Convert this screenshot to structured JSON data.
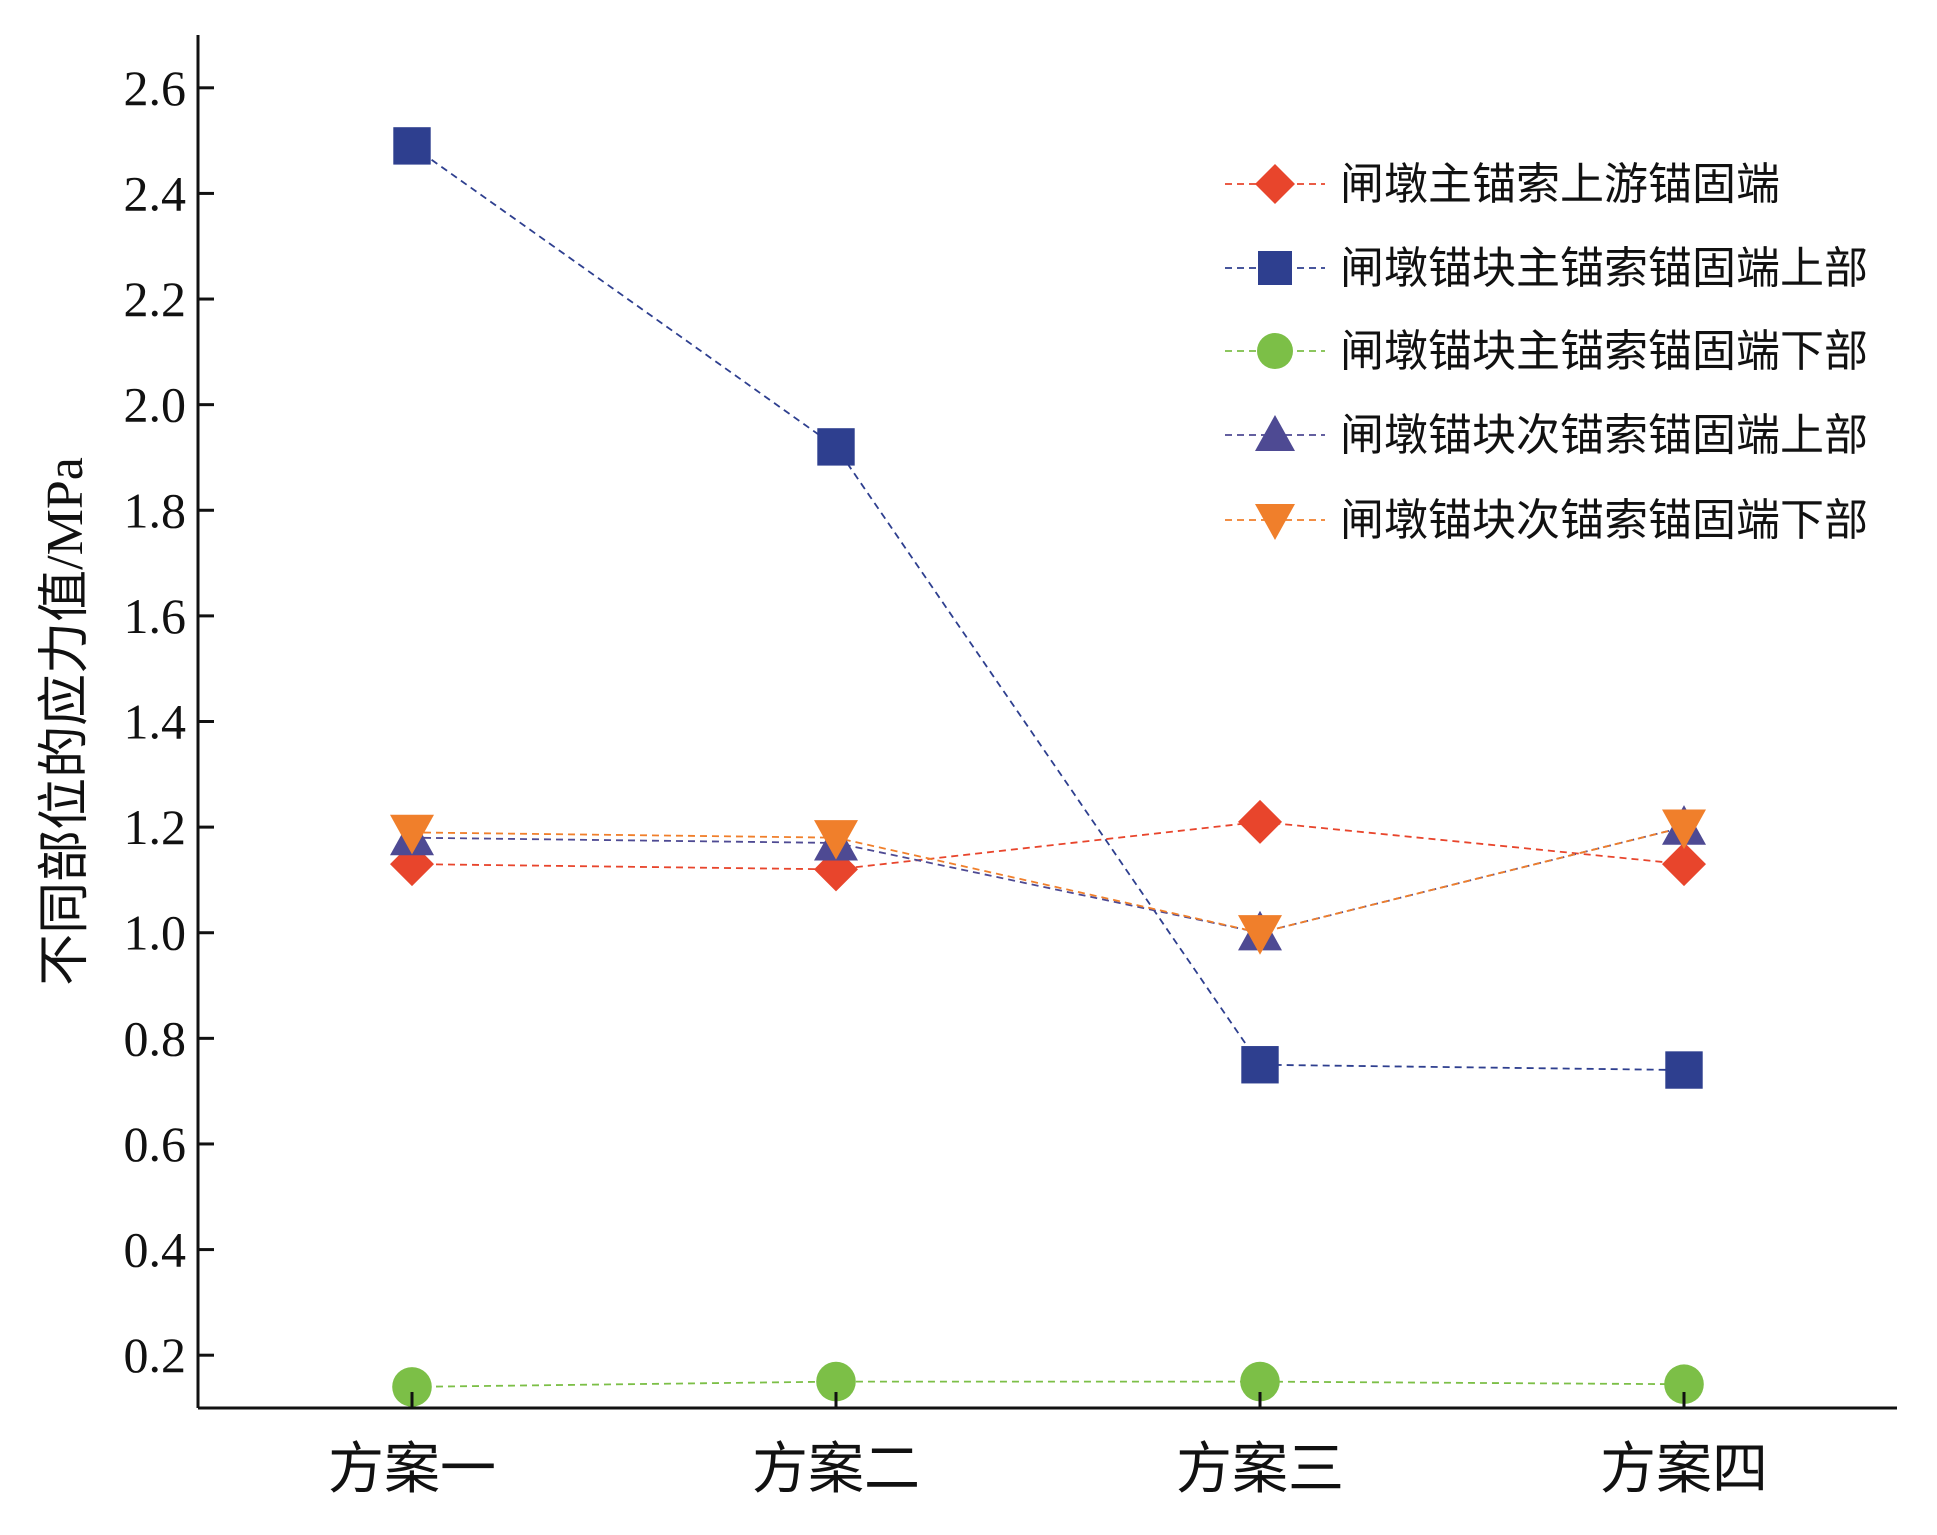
{
  "chart_data": {
    "type": "line",
    "title": "",
    "xlabel": "",
    "ylabel": "不同部位的应力值/MPa",
    "categories": [
      "方案一",
      "方案二",
      "方案三",
      "方案四"
    ],
    "ylim": [
      0.1,
      2.7
    ],
    "yticks": [
      "0.2",
      "0.4",
      "0.6",
      "0.8",
      "1.0",
      "1.2",
      "1.4",
      "1.6",
      "1.8",
      "2.0",
      "2.2",
      "2.4",
      "2.6"
    ],
    "legend_position": "top-right",
    "grid": false,
    "series": [
      {
        "name": "闸墩主锚索上游锚固端",
        "values": [
          1.13,
          1.12,
          1.21,
          1.13
        ],
        "color": "#e8452c",
        "marker": "diamond",
        "line_style": "dashed"
      },
      {
        "name": "闸墩锚块主锚索锚固端上部",
        "values": [
          2.49,
          1.92,
          0.75,
          0.74
        ],
        "color": "#2e3f8f",
        "marker": "square",
        "line_style": "dashed"
      },
      {
        "name": "闸墩锚块主锚索锚固端下部",
        "values": [
          0.14,
          0.15,
          0.15,
          0.145
        ],
        "color": "#7cbf47",
        "marker": "circle",
        "line_style": "dashed"
      },
      {
        "name": "闸墩锚块次锚索锚固端上部",
        "values": [
          1.18,
          1.17,
          1.0,
          1.2
        ],
        "color": "#4e4a93",
        "marker": "triangle-up",
        "line_style": "dashed"
      },
      {
        "name": "闸墩锚块次锚索锚固端下部",
        "values": [
          1.19,
          1.18,
          1.0,
          1.2
        ],
        "color": "#f07f2b",
        "marker": "triangle-down",
        "line_style": "dashed"
      }
    ]
  }
}
